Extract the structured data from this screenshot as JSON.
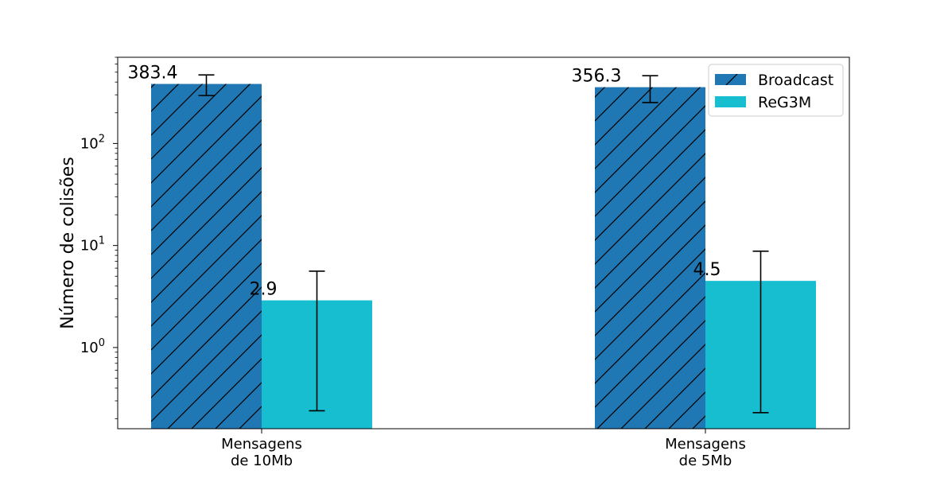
{
  "chart_data": {
    "type": "bar",
    "yscale": "log",
    "ylim": [
      0.16,
      700
    ],
    "ylabel": "Número de colisões",
    "categories": [
      [
        "Mensagens",
        "de 10Mb"
      ],
      [
        "Mensagens",
        "de 5Mb"
      ]
    ],
    "yticks": [
      {
        "value": 1,
        "base": "10",
        "exp": "0"
      },
      {
        "value": 10,
        "base": "10",
        "exp": "1"
      },
      {
        "value": 100,
        "base": "10",
        "exp": "2"
      }
    ],
    "legend_position": "top-right",
    "series": [
      {
        "name": "Broadcast",
        "color": "#1f77b4",
        "hatch": "diagonal",
        "values": [
          383.4,
          356.3
        ],
        "labels": [
          "383.4",
          "356.3"
        ],
        "err_low": [
          295,
          252
        ],
        "err_high": [
          470,
          462
        ]
      },
      {
        "name": "ReG3M",
        "color": "#17becf",
        "hatch": "none",
        "values": [
          2.9,
          4.5
        ],
        "labels": [
          "2.9",
          "4.5"
        ],
        "err_low": [
          0.24,
          0.23
        ],
        "err_high": [
          5.6,
          8.8
        ]
      }
    ]
  }
}
